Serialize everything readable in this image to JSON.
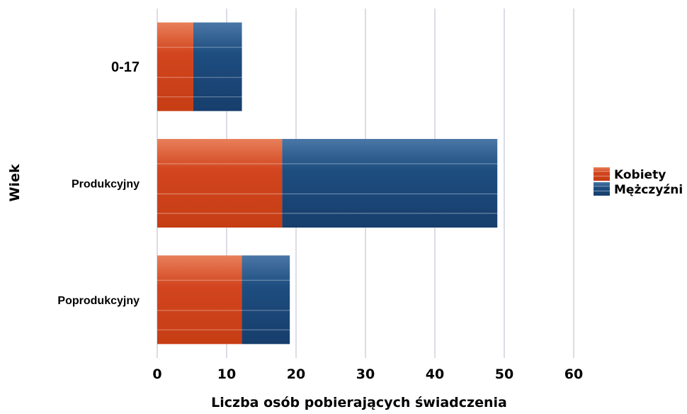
{
  "chart_data": {
    "type": "bar",
    "orientation": "horizontal",
    "stacked": true,
    "categories": [
      "0-17",
      "Produkcyjny",
      "Poprodukcyjny"
    ],
    "series": [
      {
        "name": "Kobiety",
        "values": [
          5.2,
          18.0,
          12.2
        ],
        "color": "#d2451e"
      },
      {
        "name": "Mężczyźni",
        "values": [
          7.0,
          31.0,
          6.9
        ],
        "color": "#1c4a7c"
      }
    ],
    "xlabel": "Liczba osób pobierających świadczenia",
    "ylabel": "Wiek",
    "xlim": [
      0,
      60
    ],
    "xticks": [
      "0",
      "10",
      "20",
      "30",
      "40",
      "50",
      "60"
    ],
    "grid": "vertical",
    "legend": "right"
  }
}
